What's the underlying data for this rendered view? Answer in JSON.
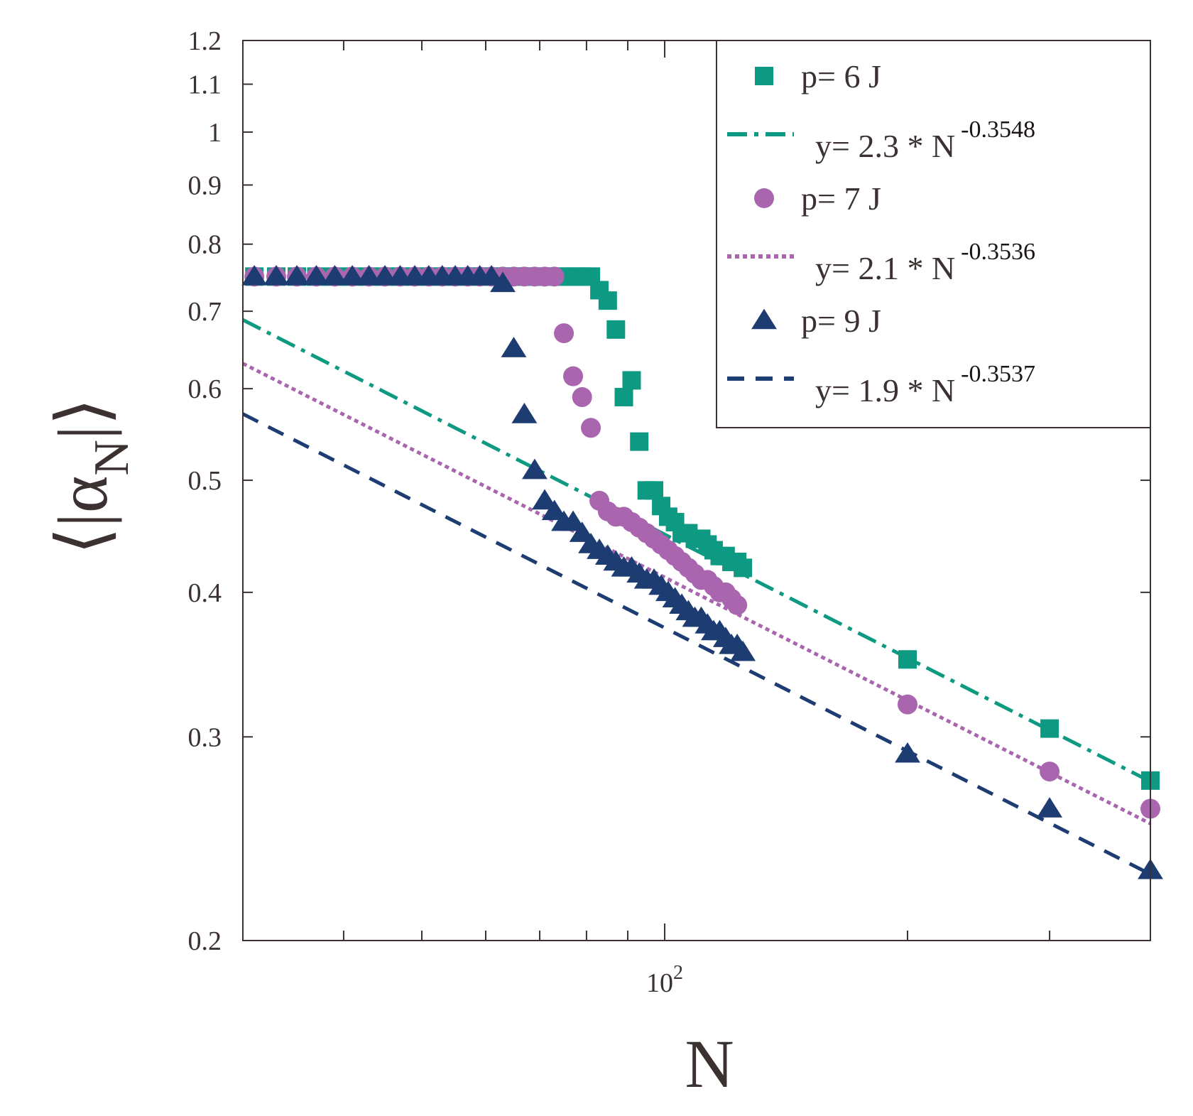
{
  "chart_data": {
    "type": "scatter",
    "title": "",
    "xlabel": "N",
    "ylabel": "⟨|αN|⟩",
    "ylabel_parts": {
      "open": "⟨|",
      "symbol": "α",
      "subscript": "N",
      "close": "|⟩"
    },
    "xscale": "log",
    "yscale": "log",
    "xlim": [
      30,
      400
    ],
    "ylim": [
      0.2,
      1.2
    ],
    "x_ticks": [
      {
        "value": 100,
        "base": "10",
        "exp": "2"
      }
    ],
    "y_ticks": [
      "0.2",
      "0.3",
      "0.4",
      "0.5",
      "0.6",
      "0.7",
      "0.8",
      "0.9",
      "1",
      "1.1",
      "1.2"
    ],
    "legend_position": "top-right",
    "series": [
      {
        "name": "p= 6 J",
        "kind": "markers",
        "marker": "square",
        "color": "#0e9a82",
        "x": [
          31,
          33,
          35,
          37,
          39,
          41,
          43,
          45,
          47,
          49,
          51,
          53,
          55,
          57,
          59,
          61,
          63,
          65,
          67,
          69,
          71,
          73,
          75,
          77,
          79,
          81,
          83,
          85,
          87,
          89,
          91,
          93,
          95,
          97,
          99,
          101,
          103,
          105,
          107,
          109,
          111,
          113,
          115,
          117,
          119,
          121,
          123,
          125,
          200,
          300,
          400
        ],
        "y": [
          0.75,
          0.75,
          0.75,
          0.75,
          0.75,
          0.75,
          0.75,
          0.75,
          0.75,
          0.75,
          0.75,
          0.75,
          0.75,
          0.75,
          0.75,
          0.75,
          0.75,
          0.75,
          0.75,
          0.75,
          0.75,
          0.75,
          0.75,
          0.75,
          0.75,
          0.75,
          0.73,
          0.715,
          0.675,
          0.59,
          0.61,
          0.54,
          0.49,
          0.49,
          0.475,
          0.465,
          0.46,
          0.45,
          0.45,
          0.445,
          0.445,
          0.44,
          0.435,
          0.43,
          0.43,
          0.425,
          0.425,
          0.42,
          0.35,
          0.305,
          0.275
        ]
      },
      {
        "name": "y= 2.3 * N",
        "name_exponent": "-0.3548",
        "kind": "line",
        "style": "dashdot",
        "color": "#0e9a82",
        "coef": 2.3,
        "exponent": -0.3548
      },
      {
        "name": "p= 7 J",
        "kind": "markers",
        "marker": "circle",
        "color": "#a966ae",
        "x": [
          31,
          33,
          35,
          37,
          39,
          41,
          43,
          45,
          47,
          49,
          51,
          53,
          55,
          57,
          59,
          61,
          63,
          65,
          67,
          69,
          71,
          73,
          75,
          77,
          79,
          81,
          83,
          85,
          87,
          89,
          91,
          93,
          95,
          97,
          99,
          101,
          103,
          105,
          107,
          109,
          111,
          113,
          115,
          117,
          119,
          121,
          123,
          200,
          300,
          400
        ],
        "y": [
          0.75,
          0.75,
          0.75,
          0.75,
          0.75,
          0.75,
          0.75,
          0.75,
          0.75,
          0.75,
          0.75,
          0.75,
          0.75,
          0.75,
          0.75,
          0.75,
          0.75,
          0.75,
          0.75,
          0.75,
          0.75,
          0.75,
          0.67,
          0.615,
          0.59,
          0.555,
          0.48,
          0.47,
          0.465,
          0.465,
          0.46,
          0.455,
          0.45,
          0.445,
          0.44,
          0.435,
          0.43,
          0.425,
          0.42,
          0.415,
          0.41,
          0.41,
          0.405,
          0.4,
          0.4,
          0.395,
          0.39,
          0.32,
          0.28,
          0.26
        ]
      },
      {
        "name": "y= 2.1 * N",
        "name_exponent": "-0.3536",
        "kind": "line",
        "style": "dotted",
        "color": "#a966ae",
        "coef": 2.1,
        "exponent": -0.3536
      },
      {
        "name": "p= 9 J",
        "kind": "markers",
        "marker": "triangle",
        "color": "#1d3d72",
        "x": [
          31,
          33,
          35,
          37,
          39,
          41,
          43,
          45,
          47,
          49,
          51,
          53,
          55,
          57,
          59,
          61,
          63,
          65,
          67,
          69,
          71,
          73,
          75,
          77,
          79,
          81,
          83,
          85,
          87,
          89,
          91,
          93,
          95,
          97,
          99,
          101,
          103,
          105,
          107,
          109,
          111,
          113,
          115,
          117,
          119,
          121,
          123,
          125,
          200,
          300,
          400
        ],
        "y": [
          0.75,
          0.75,
          0.75,
          0.75,
          0.75,
          0.75,
          0.75,
          0.75,
          0.75,
          0.75,
          0.75,
          0.75,
          0.75,
          0.75,
          0.75,
          0.75,
          0.74,
          0.65,
          0.57,
          0.51,
          0.48,
          0.47,
          0.46,
          0.46,
          0.45,
          0.44,
          0.435,
          0.43,
          0.425,
          0.42,
          0.42,
          0.415,
          0.41,
          0.41,
          0.405,
          0.4,
          0.395,
          0.39,
          0.385,
          0.38,
          0.38,
          0.375,
          0.37,
          0.37,
          0.365,
          0.36,
          0.36,
          0.355,
          0.29,
          0.26,
          0.23
        ]
      },
      {
        "name": "y= 1.9 * N",
        "name_exponent": "-0.3537",
        "kind": "line",
        "style": "dashed",
        "color": "#1d3d72",
        "coef": 1.9,
        "exponent": -0.3537
      }
    ]
  }
}
